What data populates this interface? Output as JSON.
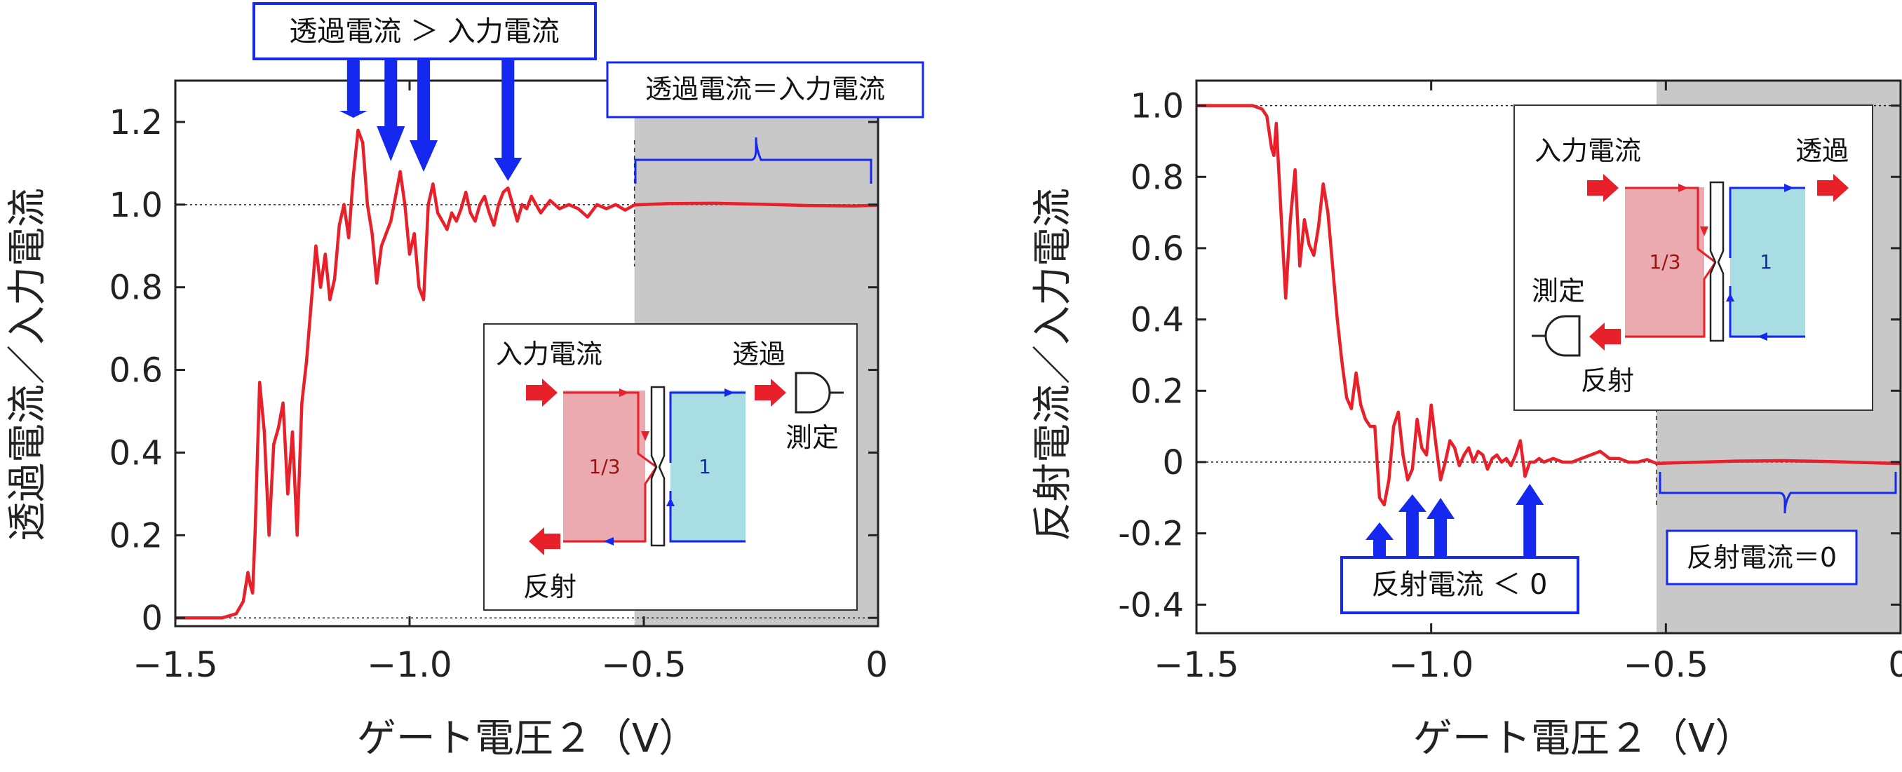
{
  "colors": {
    "curve": "#e8202a",
    "arrow": "#1428f0",
    "bracket": "#1428f0",
    "shade": "#c8c8c8",
    "box_border": "#1428f0",
    "red_region": "#eaaaaf",
    "cyan_region": "#a8dde3",
    "gate_text": "#a01010",
    "plate_text": "#1030a0"
  },
  "chart_data": [
    {
      "type": "line",
      "panel": "left",
      "xlabel": "ゲート電圧２（V）",
      "ylabel": "透過電流／入力電流",
      "xlim": [
        -1.5,
        0
      ],
      "ylim": [
        -0.02,
        1.3
      ],
      "xticks": [
        -1.5,
        -1.0,
        -0.5,
        0
      ],
      "xtick_labels": [
        "−1.5",
        "−1.0",
        "−0.5",
        "0"
      ],
      "yticks": [
        0,
        0.2,
        0.4,
        0.6,
        0.8,
        1.0,
        1.2
      ],
      "ytick_labels": [
        "0",
        "0.2",
        "0.4",
        "0.6",
        "0.8",
        "1.0",
        "1.2"
      ],
      "reference_lines": [
        0,
        1.0
      ],
      "shaded_region": [
        -0.52,
        0
      ],
      "series": [
        {
          "x": [
            -1.5,
            -1.44,
            -1.4,
            -1.37,
            -1.355,
            -1.345,
            -1.34,
            -1.335,
            -1.33,
            -1.32,
            -1.31,
            -1.3,
            -1.29,
            -1.28,
            -1.27,
            -1.26,
            -1.25,
            -1.24,
            -1.23,
            -1.22,
            -1.2,
            -1.19,
            -1.18,
            -1.17,
            -1.16,
            -1.15,
            -1.14,
            -1.13,
            -1.12,
            -1.11,
            -1.1,
            -1.09,
            -1.08,
            -1.07,
            -1.06,
            -1.05,
            -1.04,
            -1.03,
            -1.02,
            -1.01,
            -1.0,
            -0.99,
            -0.98,
            -0.97,
            -0.96,
            -0.95,
            -0.94,
            -0.93,
            -0.92,
            -0.91,
            -0.9,
            -0.89,
            -0.88,
            -0.87,
            -0.86,
            -0.85,
            -0.84,
            -0.83,
            -0.82,
            -0.81,
            -0.8,
            -0.79,
            -0.78,
            -0.77,
            -0.76,
            -0.75,
            -0.74,
            -0.72,
            -0.7,
            -0.68,
            -0.66,
            -0.64,
            -0.62,
            -0.6,
            -0.58,
            -0.56,
            -0.54,
            -0.52,
            -0.45,
            -0.35,
            -0.25,
            -0.15,
            -0.05,
            0
          ],
          "y": [
            0,
            0,
            0,
            0.01,
            0.04,
            0.11,
            0.08,
            0.06,
            0.2,
            0.57,
            0.45,
            0.2,
            0.42,
            0.46,
            0.52,
            0.3,
            0.45,
            0.2,
            0.52,
            0.62,
            0.9,
            0.8,
            0.88,
            0.77,
            0.82,
            0.95,
            1.0,
            0.92,
            1.07,
            1.18,
            1.15,
            1.0,
            0.93,
            0.81,
            0.9,
            0.93,
            0.96,
            1.02,
            1.08,
            1.0,
            0.88,
            0.93,
            0.8,
            0.77,
            1.0,
            1.05,
            0.98,
            0.96,
            0.94,
            0.98,
            0.96,
            0.99,
            1.03,
            0.98,
            0.96,
            1.0,
            1.02,
            0.98,
            0.95,
            1.0,
            1.03,
            1.04,
            1.0,
            0.96,
            1.0,
            0.99,
            1.02,
            0.98,
            1.01,
            0.99,
            1.0,
            0.99,
            0.97,
            1.0,
            0.99,
            1.0,
            0.99,
            1.0,
            1.0,
            1.0,
            1.0,
            1.0,
            1.0,
            1.0
          ]
        }
      ],
      "arrow_positions_x": [
        -1.12,
        -1.04,
        -0.97,
        -0.79
      ]
    },
    {
      "type": "line",
      "panel": "right",
      "xlabel": "ゲート電圧２（V）",
      "ylabel": "反射電流／入力電流",
      "xlim": [
        -1.5,
        0
      ],
      "ylim": [
        -0.48,
        1.07
      ],
      "xticks": [
        -1.5,
        -1.0,
        -0.5,
        0
      ],
      "xtick_labels": [
        "−1.5",
        "−1.0",
        "−0.5",
        "0"
      ],
      "yticks": [
        -0.4,
        -0.2,
        0,
        0.2,
        0.4,
        0.6,
        0.8,
        1.0
      ],
      "ytick_labels": [
        "-0.4",
        "-0.2",
        "0",
        "0.2",
        "0.4",
        "0.6",
        "0.8",
        "1.0"
      ],
      "reference_lines": [
        0,
        1.0
      ],
      "shaded_region": [
        -0.52,
        0
      ],
      "series": [
        {
          "x": [
            -1.5,
            -1.42,
            -1.38,
            -1.36,
            -1.35,
            -1.34,
            -1.335,
            -1.33,
            -1.32,
            -1.31,
            -1.3,
            -1.29,
            -1.28,
            -1.27,
            -1.26,
            -1.25,
            -1.24,
            -1.23,
            -1.22,
            -1.21,
            -1.2,
            -1.19,
            -1.18,
            -1.17,
            -1.16,
            -1.15,
            -1.14,
            -1.13,
            -1.12,
            -1.11,
            -1.1,
            -1.09,
            -1.08,
            -1.07,
            -1.06,
            -1.05,
            -1.04,
            -1.03,
            -1.02,
            -1.01,
            -1.0,
            -0.99,
            -0.98,
            -0.97,
            -0.96,
            -0.95,
            -0.94,
            -0.93,
            -0.92,
            -0.91,
            -0.9,
            -0.89,
            -0.88,
            -0.87,
            -0.86,
            -0.85,
            -0.84,
            -0.83,
            -0.82,
            -0.81,
            -0.8,
            -0.79,
            -0.78,
            -0.77,
            -0.76,
            -0.74,
            -0.72,
            -0.7,
            -0.68,
            -0.66,
            -0.64,
            -0.62,
            -0.6,
            -0.58,
            -0.56,
            -0.54,
            -0.52,
            -0.45,
            -0.35,
            -0.25,
            -0.15,
            -0.05,
            0
          ],
          "y": [
            1.0,
            1.0,
            1.0,
            0.99,
            0.97,
            0.88,
            0.86,
            0.95,
            0.7,
            0.46,
            0.68,
            0.82,
            0.55,
            0.68,
            0.61,
            0.58,
            0.66,
            0.78,
            0.7,
            0.55,
            0.4,
            0.28,
            0.18,
            0.15,
            0.25,
            0.16,
            0.12,
            0.1,
            0.1,
            -0.1,
            -0.12,
            -0.05,
            0.1,
            0.14,
            0.02,
            -0.05,
            -0.02,
            0.12,
            0.04,
            0.02,
            0.16,
            0.05,
            -0.05,
            0.0,
            0.06,
            0.04,
            -0.01,
            0.02,
            0.04,
            0.0,
            0.03,
            0.02,
            -0.02,
            0.01,
            0.02,
            0.0,
            0.01,
            -0.01,
            0.02,
            0.06,
            -0.04,
            0.0,
            0.0,
            0.01,
            0.0,
            0.01,
            0.0,
            0.0,
            0.01,
            0.02,
            0.03,
            0.01,
            0.01,
            0.0,
            0.0,
            0.01,
            0.0,
            0.0,
            0.0,
            0.0,
            0.0,
            0.0,
            0.0
          ]
        }
      ],
      "arrow_positions_x": [
        -1.11,
        -1.04,
        -0.98,
        -0.79
      ]
    }
  ],
  "left_panel": {
    "arrow_box_label": "透過電流 ＞ 入力電流",
    "bracket_box_label": "透過電流＝入力電流",
    "inset": {
      "input_label": "入力電流",
      "transmit_label": "透過",
      "measure_label": "測定",
      "reflect_label": "反射",
      "left_region_value": "1/3",
      "right_region_value": "1"
    }
  },
  "right_panel": {
    "arrow_box_label": "反射電流 ＜ 0",
    "bracket_box_label": "反射電流＝0",
    "inset": {
      "input_label": "入力電流",
      "transmit_label": "透過",
      "measure_label": "測定",
      "reflect_label": "反射",
      "left_region_value": "1/3",
      "right_region_value": "1"
    }
  }
}
